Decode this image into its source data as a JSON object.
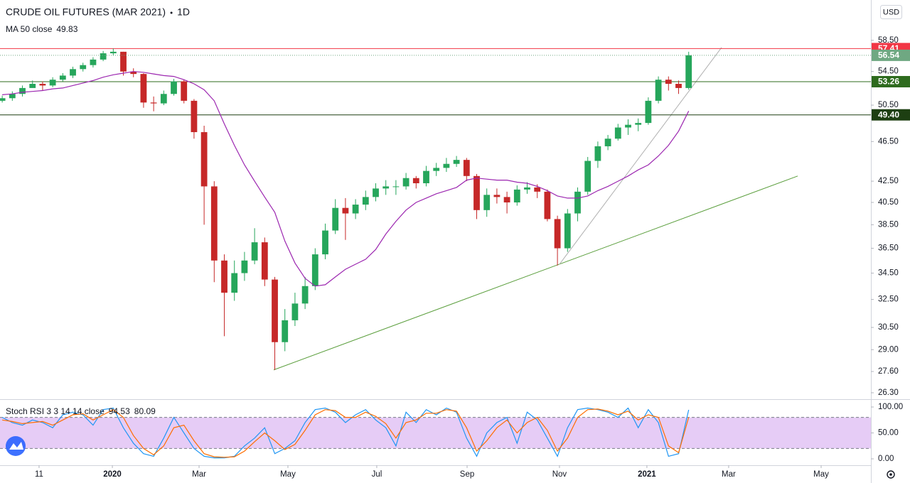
{
  "chart_data": {
    "type": "candlestick",
    "title": "CRUDE OIL FUTURES (MAR 2021)",
    "interval": "1D",
    "currency": "USD",
    "log_scale": true,
    "grid": false,
    "up_color": "#26a65b",
    "down_color": "#c62828",
    "xlim": [
      -0.22,
      86.05
    ],
    "xticks": [
      {
        "value": 3.65,
        "label": "11"
      },
      {
        "value": 10.91,
        "label": "2020"
      },
      {
        "value": 19.5,
        "label": "Mar"
      },
      {
        "value": 28.3,
        "label": "May"
      },
      {
        "value": 37.1,
        "label": "Jul"
      },
      {
        "value": 46.05,
        "label": "Sep"
      },
      {
        "value": 55.2,
        "label": "Nov"
      },
      {
        "value": 63.86,
        "label": "2021"
      },
      {
        "value": 71.96,
        "label": "Mar"
      },
      {
        "value": 81.12,
        "label": "May"
      }
    ],
    "ylim": [
      25.92,
      64.1
    ],
    "yticks": [
      {
        "value": 26.3,
        "label": "26.30"
      },
      {
        "value": 27.6,
        "label": "27.60"
      },
      {
        "value": 29,
        "label": "29.00"
      },
      {
        "value": 30.5,
        "label": "30.50"
      },
      {
        "value": 32.5,
        "label": "32.50"
      },
      {
        "value": 34.5,
        "label": "34.50"
      },
      {
        "value": 36.5,
        "label": "36.50"
      },
      {
        "value": 38.5,
        "label": "38.50"
      },
      {
        "value": 40.5,
        "label": "40.50"
      },
      {
        "value": 42.5,
        "label": "42.50"
      },
      {
        "value": 46.5,
        "label": "46.50"
      },
      {
        "value": 50.5,
        "label": "50.50"
      },
      {
        "value": 54.5,
        "label": "54.50"
      },
      {
        "value": 58.5,
        "label": "58.50"
      }
    ],
    "open": [
      51.0,
      51.3,
      51.8,
      52.5,
      53.0,
      52.8,
      53.5,
      54.0,
      54.8,
      55.3,
      56.0,
      56.8,
      57.0,
      54.5,
      54.2,
      50.8,
      50.7,
      51.8,
      53.3,
      51.0,
      47.5,
      42.0,
      35.5,
      33.0,
      34.5,
      35.5,
      37.0,
      34.0,
      29.5,
      31.0,
      32.2,
      33.5,
      36.0,
      38.0,
      40.0,
      39.5,
      40.3,
      41.0,
      41.8,
      42.0,
      42.0,
      42.8,
      42.3,
      43.5,
      43.8,
      44.2,
      44.6,
      43.0,
      39.8,
      41.2,
      41.0,
      40.5,
      41.7,
      41.9,
      41.5,
      39.0,
      36.5,
      39.5,
      41.5,
      44.5,
      46.0,
      46.8,
      48.0,
      48.3,
      48.5,
      51.0,
      53.5,
      53.0,
      52.5
    ],
    "high": [
      51.6,
      52.1,
      52.8,
      53.4,
      53.3,
      53.8,
      54.3,
      55.1,
      55.6,
      56.3,
      57.1,
      57.41,
      57.0,
      54.9,
      54.3,
      51.5,
      52.2,
      53.6,
      53.5,
      51.2,
      48.2,
      42.5,
      36.0,
      35.5,
      36.2,
      38.2,
      37.4,
      34.2,
      31.8,
      33.0,
      34.2,
      36.5,
      38.6,
      40.8,
      40.9,
      40.8,
      41.6,
      42.3,
      42.6,
      42.6,
      43.3,
      43.0,
      44.0,
      44.3,
      44.8,
      45.0,
      44.8,
      43.2,
      41.8,
      41.8,
      41.5,
      42.1,
      42.4,
      42.2,
      41.7,
      39.3,
      39.9,
      41.9,
      44.9,
      46.5,
      47.2,
      48.4,
      48.9,
      49.0,
      51.4,
      53.9,
      53.9,
      53.4,
      57.0
    ],
    "low": [
      50.8,
      51.0,
      51.5,
      52.6,
      52.2,
      52.6,
      53.3,
      53.7,
      54.5,
      55.0,
      55.8,
      56.5,
      54.0,
      53.8,
      50.2,
      49.8,
      50.5,
      51.6,
      50.7,
      46.8,
      38.5,
      33.8,
      29.9,
      32.4,
      33.9,
      35.2,
      33.5,
      27.7,
      28.9,
      30.6,
      31.8,
      33.2,
      35.6,
      37.7,
      37.2,
      39.0,
      39.8,
      40.6,
      41.2,
      41.2,
      41.7,
      41.8,
      42.0,
      43.0,
      43.4,
      43.9,
      42.5,
      39.0,
      39.2,
      40.4,
      39.5,
      40.2,
      41.3,
      40.9,
      38.8,
      35.1,
      36.2,
      38.8,
      41.2,
      43.8,
      45.6,
      46.6,
      47.2,
      47.6,
      48.3,
      50.7,
      52.2,
      51.8,
      52.3
    ],
    "close": [
      51.3,
      51.8,
      52.5,
      53.0,
      52.8,
      53.5,
      54.0,
      54.8,
      55.3,
      56.0,
      56.8,
      57.0,
      54.5,
      54.2,
      50.8,
      50.7,
      51.8,
      53.3,
      51.0,
      47.5,
      42.0,
      35.5,
      33.0,
      34.5,
      35.5,
      37.0,
      34.0,
      29.5,
      31.0,
      32.2,
      33.5,
      36.0,
      38.0,
      40.0,
      39.5,
      40.3,
      41.0,
      41.8,
      42.0,
      42.0,
      42.8,
      42.3,
      43.5,
      43.8,
      44.2,
      44.6,
      43.0,
      39.8,
      41.2,
      41.0,
      40.5,
      41.7,
      41.9,
      41.5,
      39.0,
      36.5,
      39.5,
      41.5,
      44.5,
      46.0,
      46.8,
      48.0,
      48.3,
      48.5,
      51.0,
      53.5,
      53.0,
      52.5,
      56.54
    ],
    "last_color": "#6fa882",
    "ma": {
      "name": "MA 50 close",
      "color": "#9c27b0",
      "values": [
        51.7,
        51.8,
        52.0,
        52.1,
        52.2,
        52.4,
        52.5,
        52.8,
        53.1,
        53.4,
        53.8,
        54.1,
        54.3,
        54.5,
        54.4,
        54.2,
        54.0,
        53.9,
        53.5,
        53.0,
        52.3,
        51.0,
        48.4,
        46.1,
        44.1,
        42.5,
        41.0,
        39.6,
        37.1,
        35.3,
        34.1,
        33.5,
        33.6,
        34.2,
        34.8,
        35.2,
        35.6,
        36.4,
        37.7,
        38.8,
        39.8,
        40.5,
        40.9,
        41.3,
        41.6,
        41.9,
        42.6,
        42.8,
        42.7,
        42.6,
        42.6,
        42.4,
        42.3,
        42.0,
        41.6,
        41.1,
        40.9,
        40.9,
        41.1,
        41.6,
        42.0,
        42.5,
        43.0,
        43.6,
        44.1,
        45.0,
        46.1,
        47.6,
        49.83
      ]
    },
    "levels": [
      {
        "value": 57.41,
        "color": "#f23645"
      },
      {
        "value": 53.26,
        "color": "#2e6b1e"
      },
      {
        "value": 49.4,
        "label": "49.40",
        "color": "#1d3f12"
      }
    ],
    "trendlines": [
      {
        "color": "#5a9e3c",
        "from": [
          26.89,
          27.7
        ],
        "to": [
          78.8,
          43.0
        ]
      },
      {
        "color": "#b0b0b0",
        "from": [
          55.2,
          35.2
        ],
        "to": [
          71.26,
          57.56
        ]
      }
    ],
    "stoch": {
      "name": "Stoch RSI 3 3 14 14 close",
      "ylim": [
        -8.2,
        113.7
      ],
      "yticks": [
        {
          "value": 0,
          "label": "0.00"
        },
        {
          "value": 50,
          "label": "50.00"
        },
        {
          "value": 100,
          "label": "100.00"
        }
      ],
      "band": [
        20,
        80
      ],
      "band_color": "#e6ccf6",
      "series": [
        {
          "color": "#2196f3",
          "values": [
            80,
            70,
            65,
            75,
            70,
            60,
            85,
            90,
            85,
            65,
            95,
            98,
            60,
            30,
            10,
            5,
            40,
            80,
            50,
            20,
            5,
            2,
            2,
            5,
            25,
            40,
            60,
            10,
            20,
            35,
            70,
            95,
            98,
            90,
            70,
            85,
            95,
            75,
            60,
            25,
            90,
            70,
            95,
            85,
            98,
            90,
            40,
            5,
            50,
            70,
            80,
            30,
            90,
            75,
            40,
            5,
            60,
            95,
            98,
            95,
            90,
            80,
            98,
            60,
            95,
            70,
            5,
            10,
            94.53
          ]
        },
        {
          "color": "#ff6d00",
          "values": [
            75,
            72,
            68,
            70,
            72,
            65,
            75,
            85,
            87,
            75,
            85,
            95,
            80,
            45,
            20,
            8,
            25,
            60,
            65,
            35,
            10,
            4,
            3,
            4,
            15,
            33,
            50,
            35,
            18,
            28,
            55,
            85,
            95,
            93,
            80,
            80,
            90,
            82,
            68,
            40,
            70,
            75,
            88,
            88,
            95,
            92,
            60,
            15,
            35,
            60,
            75,
            50,
            70,
            80,
            55,
            15,
            40,
            80,
            95,
            96,
            92,
            85,
            92,
            75,
            85,
            80,
            25,
            12,
            80.09
          ]
        }
      ]
    }
  }
}
